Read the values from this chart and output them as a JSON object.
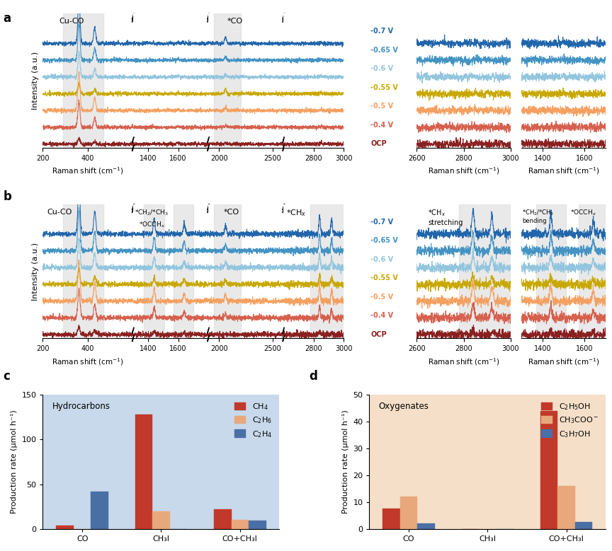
{
  "voltage_labels": [
    "-0.7 V",
    "-0.65 V",
    "-0.6 V",
    "-0.55 V",
    "-0.5 V",
    "-0.4 V",
    "OCP"
  ],
  "voltage_colors": [
    "#2166ac",
    "#4393c3",
    "#92c5de",
    "#c8a800",
    "#f4a060",
    "#d6604d",
    "#8b2020"
  ],
  "bar_categories_c": [
    "CO",
    "CH₃I",
    "CO+CH₃I"
  ],
  "bar_categories_d": [
    "CO",
    "CH₃I",
    "CO+CH₃I"
  ],
  "c_ch4_v": [
    4,
    128,
    22
  ],
  "c_c2h6_v": [
    0,
    20,
    10
  ],
  "c_c2h4_v": [
    42,
    0,
    9
  ],
  "d_c2h5oh_v": [
    7.5,
    0,
    44
  ],
  "d_ch3coo_v": [
    12,
    0,
    16
  ],
  "d_c3h7oh_v": [
    2,
    0,
    2.5
  ],
  "c_ylim": [
    0,
    150
  ],
  "d_ylim": [
    0,
    50
  ],
  "c_yticks": [
    0,
    50,
    100,
    150
  ],
  "d_yticks": [
    0,
    10,
    20,
    30,
    40,
    50
  ],
  "c_bg_color": "#c8d9eb",
  "d_bg_color": "#f5dfc8",
  "red_color": "#c0392b",
  "orange_color": "#e8a87c",
  "blue_color": "#4a6fa5",
  "hatch_pattern": "////",
  "ylabel_bar": "Production rate (μmol h⁻¹)"
}
